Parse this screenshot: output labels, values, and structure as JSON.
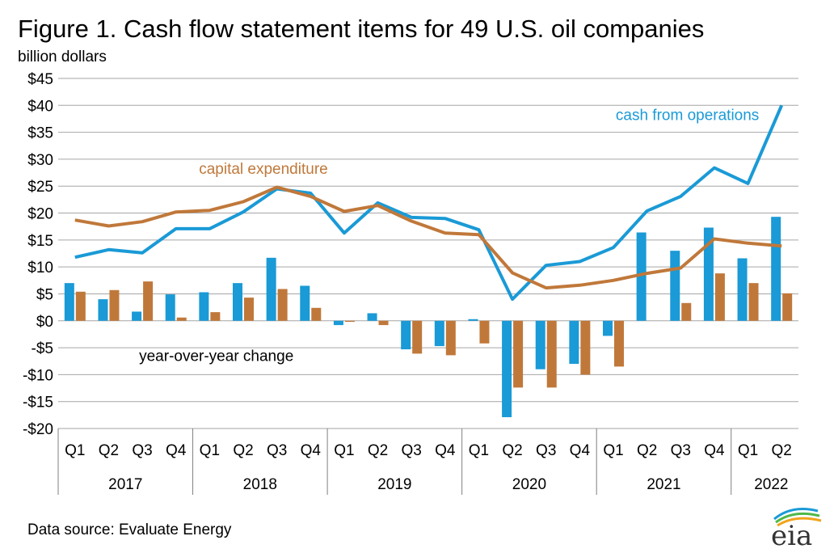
{
  "title": "Figure 1. Cash flow statement items for 49 U.S. oil companies",
  "ylabel": "billion dollars",
  "source": "Data source: Evaluate Energy",
  "logo_text": "eia",
  "colors": {
    "cash": "#1a9ad6",
    "capex": "#c0783a",
    "grid": "#a6a6a6"
  },
  "chart_data": {
    "type": "bar",
    "title": "Figure 1. Cash flow statement items for 49 U.S. oil companies",
    "ylabel": "billion dollars",
    "xlabel": "",
    "ylim": [
      -20,
      45
    ],
    "yticks": [
      -20,
      -15,
      -10,
      -5,
      0,
      5,
      10,
      15,
      20,
      25,
      30,
      35,
      40,
      45
    ],
    "ytick_labels": [
      "-$20",
      "-$15",
      "-$10",
      "-$5",
      "$0",
      "$5",
      "$10",
      "$15",
      "$20",
      "$25",
      "$30",
      "$35",
      "$40",
      "$45"
    ],
    "grid": true,
    "categories": [
      "Q1",
      "Q2",
      "Q3",
      "Q4",
      "Q1",
      "Q2",
      "Q3",
      "Q4",
      "Q1",
      "Q2",
      "Q3",
      "Q4",
      "Q1",
      "Q2",
      "Q3",
      "Q4",
      "Q1",
      "Q2",
      "Q3",
      "Q4",
      "Q1",
      "Q2"
    ],
    "year_groups": [
      {
        "label": "2017",
        "count": 4
      },
      {
        "label": "2018",
        "count": 4
      },
      {
        "label": "2019",
        "count": 4
      },
      {
        "label": "2020",
        "count": 4
      },
      {
        "label": "2021",
        "count": 4
      },
      {
        "label": "2022",
        "count": 2
      }
    ],
    "lines": [
      {
        "name": "cash from operations",
        "color": "#1a9ad6",
        "values": [
          11.8,
          13.2,
          12.6,
          17.1,
          17.1,
          20.2,
          24.5,
          23.7,
          16.3,
          21.9,
          19.2,
          19.0,
          16.9,
          4.0,
          10.3,
          11.0,
          13.6,
          20.4,
          23.1,
          28.4,
          25.5,
          40.0
        ]
      },
      {
        "name": "capital expenditure",
        "color": "#c0783a",
        "values": [
          18.7,
          17.6,
          18.4,
          20.2,
          20.5,
          22.1,
          24.8,
          23.1,
          20.3,
          21.4,
          18.5,
          16.3,
          16.0,
          8.9,
          6.1,
          6.6,
          7.5,
          8.8,
          9.8,
          15.2,
          14.4,
          13.9
        ]
      }
    ],
    "bars_label": "year-over-year  change",
    "bar_series": [
      {
        "name": "cash from operations",
        "color": "#1a9ad6",
        "values": [
          7.0,
          4.0,
          1.7,
          4.9,
          5.3,
          7.0,
          11.7,
          6.5,
          -0.8,
          1.4,
          -5.3,
          -4.7,
          0.3,
          -17.9,
          -9.0,
          -8.0,
          -2.8,
          16.4,
          13.0,
          17.3,
          11.6,
          19.3
        ]
      },
      {
        "name": "capital expenditure",
        "color": "#c0783a",
        "values": [
          5.4,
          5.7,
          7.3,
          0.6,
          1.6,
          4.3,
          5.9,
          2.4,
          -0.2,
          -0.8,
          -6.1,
          -6.4,
          -4.2,
          -12.4,
          -12.4,
          -10.0,
          -8.5,
          0.0,
          3.3,
          8.8,
          7.0,
          5.1
        ]
      }
    ],
    "annotations": [
      {
        "text": "cash from operations",
        "color": "#1a9ad6",
        "anchor": {
          "index": 18.2,
          "value": 37.3
        }
      },
      {
        "text": "capital expenditure",
        "color": "#c0783a",
        "anchor": {
          "index": 5.6,
          "value": 27.3
        }
      },
      {
        "text": "year-over-year  change",
        "color": "#000000",
        "anchor": {
          "index": 4.2,
          "value": -7.5
        }
      }
    ]
  }
}
